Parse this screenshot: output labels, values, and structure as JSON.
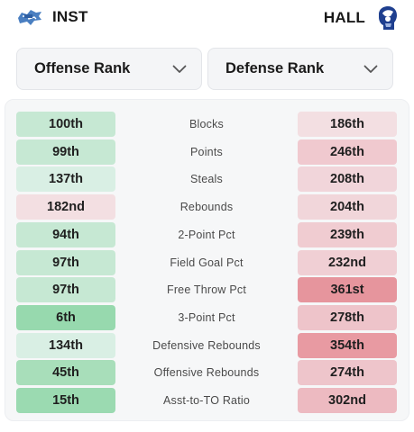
{
  "header": {
    "team_left": "INST",
    "team_right": "HALL"
  },
  "selects": {
    "left_label": "Offense Rank",
    "right_label": "Defense Rank"
  },
  "colors": {
    "green_light": "#d9f0e3",
    "green_mid": "#c3e7d1",
    "green_strong": "#9fddb4",
    "pink_light": "#f4dde1",
    "pink_mid": "#efc9cf",
    "pink_strong": "#e8949c"
  },
  "rows": [
    {
      "stat": "Blocks",
      "left": "100th",
      "left_color": "#c6e8d3",
      "right": "186th",
      "right_color": "#f3dfe2"
    },
    {
      "stat": "Points",
      "left": "99th",
      "left_color": "#c6e8d3",
      "right": "246th",
      "right_color": "#f0c9cf"
    },
    {
      "stat": "Steals",
      "left": "137th",
      "left_color": "#d9efe4",
      "right": "208th",
      "right_color": "#f1d5da"
    },
    {
      "stat": "Rebounds",
      "left": "182nd",
      "left_color": "#f3dfe2",
      "right": "204th",
      "right_color": "#f1d6da"
    },
    {
      "stat": "2-Point Pct",
      "left": "94th",
      "left_color": "#c6e8d3",
      "right": "239th",
      "right_color": "#f0ccd1"
    },
    {
      "stat": "Field Goal Pct",
      "left": "97th",
      "left_color": "#c6e8d3",
      "right": "232nd",
      "right_color": "#f0cfd4"
    },
    {
      "stat": "Free Throw Pct",
      "left": "97th",
      "left_color": "#c6e8d3",
      "right": "361st",
      "right_color": "#e6959d"
    },
    {
      "stat": "3-Point Pct",
      "left": "6th",
      "left_color": "#97d9ae",
      "right": "278th",
      "right_color": "#eec4ca"
    },
    {
      "stat": "Defensive Rebounds",
      "left": "134th",
      "left_color": "#d9efe4",
      "right": "354th",
      "right_color": "#e89aa2"
    },
    {
      "stat": "Offensive Rebounds",
      "left": "45th",
      "left_color": "#a8deba",
      "right": "274th",
      "right_color": "#eec5cb"
    },
    {
      "stat": "Asst-to-TO Ratio",
      "left": "15th",
      "left_color": "#9bdab1",
      "right": "302nd",
      "right_color": "#edbac1"
    }
  ]
}
